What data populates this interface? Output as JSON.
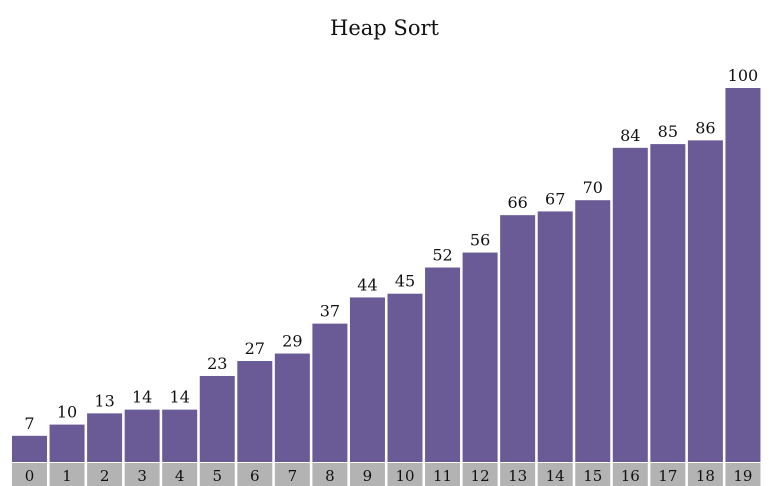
{
  "chart_data": {
    "type": "bar",
    "title": "Heap Sort",
    "categories": [
      "0",
      "1",
      "2",
      "3",
      "4",
      "5",
      "6",
      "7",
      "8",
      "9",
      "10",
      "11",
      "12",
      "13",
      "14",
      "15",
      "16",
      "17",
      "18",
      "19"
    ],
    "values": [
      7,
      10,
      13,
      14,
      14,
      23,
      27,
      29,
      37,
      44,
      45,
      52,
      56,
      66,
      67,
      70,
      84,
      85,
      86,
      100
    ],
    "ylim": [
      0,
      100
    ],
    "grid": false,
    "legend": "none"
  },
  "colors": {
    "bar": "#6a5a96",
    "index_cell": "#b3b3b3",
    "value_label": "#111111",
    "index_label": "#111111"
  }
}
